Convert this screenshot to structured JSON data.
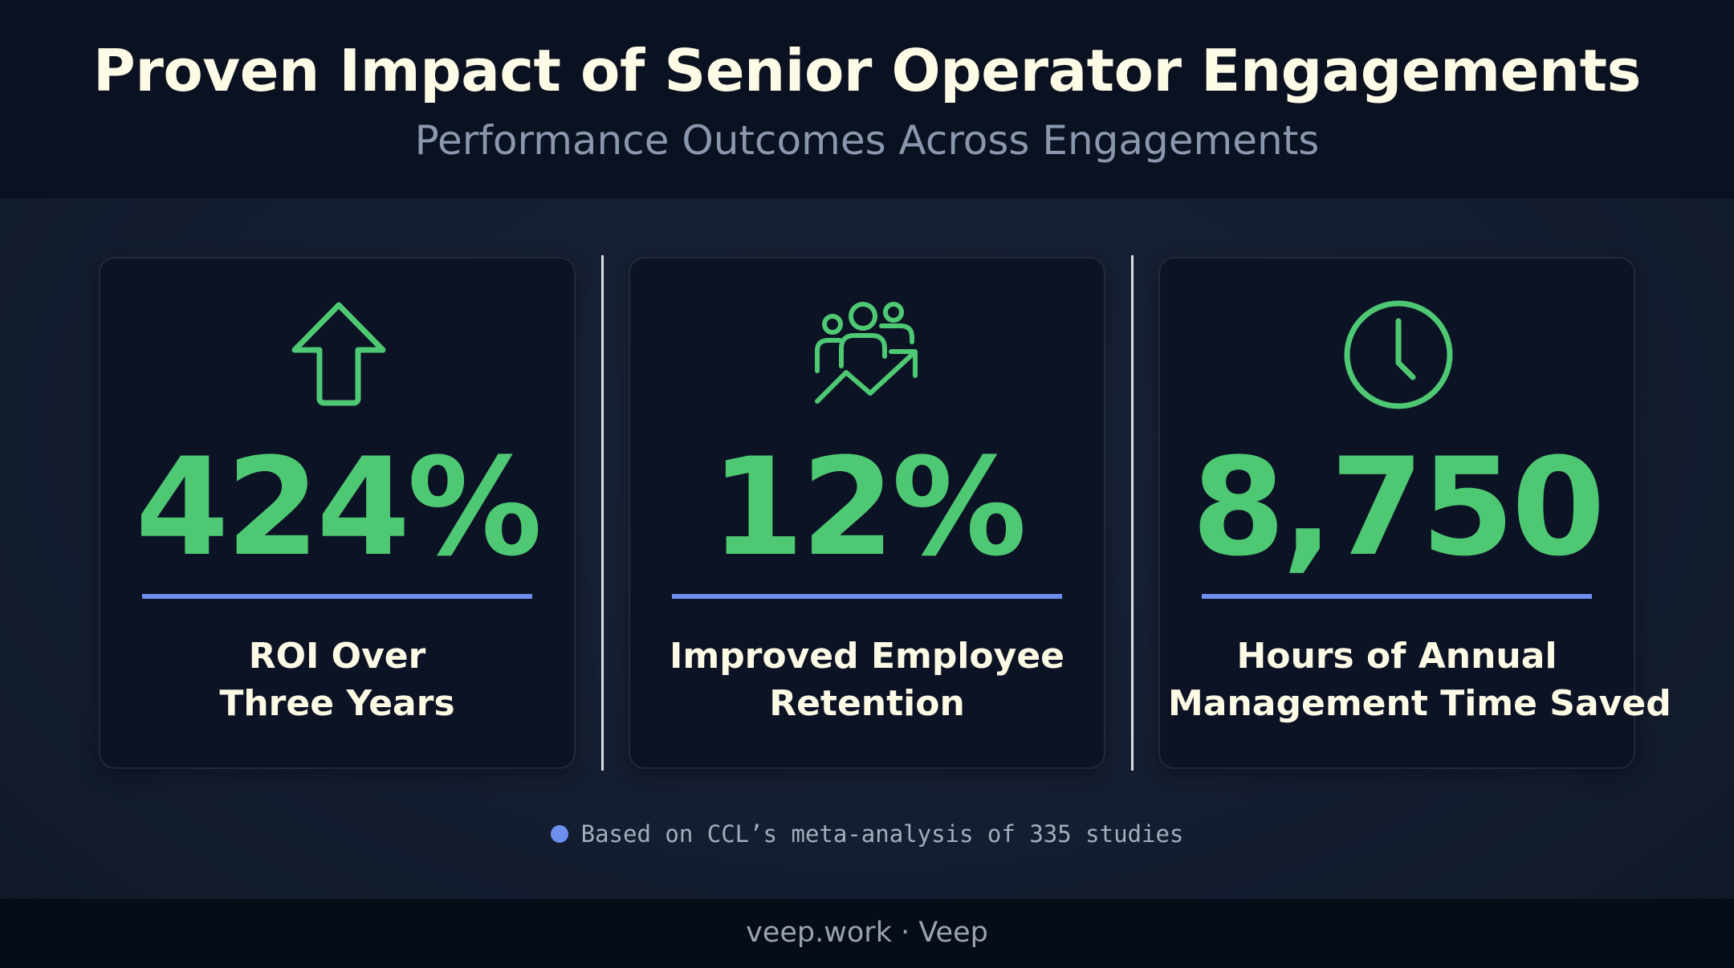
{
  "header": {
    "title": "Proven Impact of Senior Operator Engagements",
    "subtitle": "Performance Outcomes Across Engagements"
  },
  "colors": {
    "accent_green": "#4fc873",
    "accent_blue": "#6d8ff0",
    "title_text": "#fdfae6",
    "card_background": "#0c1324"
  },
  "metrics": [
    {
      "icon": "arrow-up-icon",
      "value": "424%",
      "label_lines": [
        "ROI Over",
        "Three Years"
      ]
    },
    {
      "icon": "team-growth-icon",
      "value": "12%",
      "label_lines": [
        "Improved Employee",
        "Retention"
      ]
    },
    {
      "icon": "clock-icon",
      "value": "8,750",
      "label_lines": [
        "Hours of Annual",
        "Management Time Saved"
      ]
    }
  ],
  "footnote": {
    "text": "Based on CCL’s meta-analysis of 335 studies"
  },
  "footer": {
    "text": "veep.work · Veep"
  }
}
